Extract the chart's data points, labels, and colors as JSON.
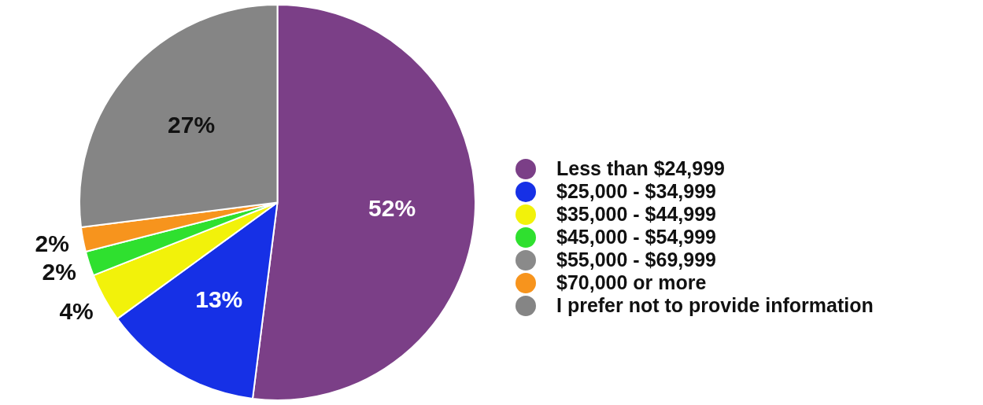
{
  "chart_data": {
    "type": "pie",
    "categories": [
      "Less than $24,999",
      "$25,000 - $34,999",
      "$35,000 - $44,999",
      "$45,000 - $54,999",
      "$55,000 - $69,999",
      "$70,000 or more",
      "I prefer not to provide information"
    ],
    "values": [
      52,
      13,
      4,
      2,
      0,
      2,
      27
    ],
    "colors": [
      "#7b3f87",
      "#1630e6",
      "#f2f20a",
      "#2fe02f",
      "#8a8a8a",
      "#f7941d",
      "#858585"
    ],
    "value_labels": [
      "52%",
      "13%",
      "4%",
      "2%",
      null,
      "2%",
      "27%"
    ],
    "legend": "right"
  }
}
